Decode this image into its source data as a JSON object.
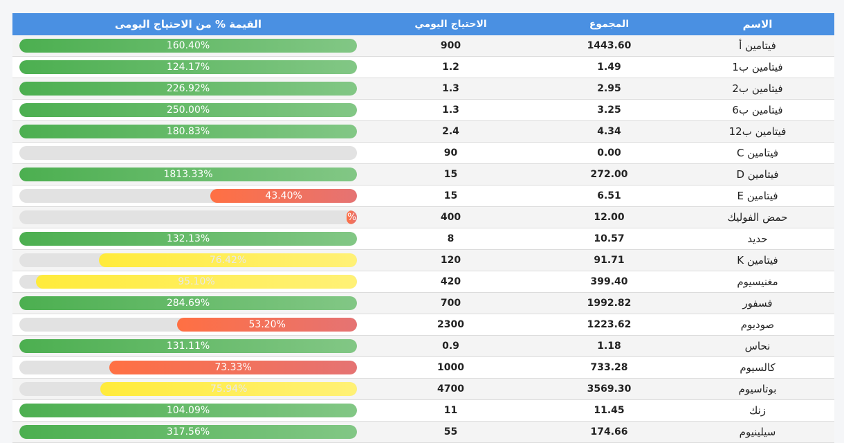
{
  "table": {
    "headers": {
      "name": "الاسم",
      "total": "المجموع",
      "daily": "الاحتياج اليومي",
      "percent": "القيمة % من الاحتياج اليومى"
    },
    "rows": [
      {
        "name": "فيتامين أ",
        "total": "1443.60",
        "daily": "900",
        "percent_label": "160.40%",
        "percent": 160.4,
        "color": "green"
      },
      {
        "name": "فيتامين ب1",
        "total": "1.49",
        "daily": "1.2",
        "percent_label": "124.17%",
        "percent": 124.17,
        "color": "green"
      },
      {
        "name": "فيتامين ب2",
        "total": "2.95",
        "daily": "1.3",
        "percent_label": "226.92%",
        "percent": 226.92,
        "color": "green"
      },
      {
        "name": "فيتامين ب6",
        "total": "3.25",
        "daily": "1.3",
        "percent_label": "250.00%",
        "percent": 250.0,
        "color": "green"
      },
      {
        "name": "فيتامين ب12",
        "total": "4.34",
        "daily": "2.4",
        "percent_label": "180.83%",
        "percent": 180.83,
        "color": "green"
      },
      {
        "name": "فيتامين C",
        "total": "0.00",
        "daily": "90",
        "percent_label": "",
        "percent": 0,
        "color": "red"
      },
      {
        "name": "فيتامين D",
        "total": "272.00",
        "daily": "15",
        "percent_label": "1813.33%",
        "percent": 1813.33,
        "color": "green"
      },
      {
        "name": "فيتامين E",
        "total": "6.51",
        "daily": "15",
        "percent_label": "43.40%",
        "percent": 43.4,
        "color": "red"
      },
      {
        "name": "حمض الفوليك",
        "total": "12.00",
        "daily": "400",
        "percent_label": "%",
        "percent": 3.0,
        "color": "red"
      },
      {
        "name": "حديد",
        "total": "10.57",
        "daily": "8",
        "percent_label": "132.13%",
        "percent": 132.13,
        "color": "green"
      },
      {
        "name": "فيتامين K",
        "total": "91.71",
        "daily": "120",
        "percent_label": "76.42%",
        "percent": 76.42,
        "color": "yellow"
      },
      {
        "name": "مغنيسيوم",
        "total": "399.40",
        "daily": "420",
        "percent_label": "95.10%",
        "percent": 95.1,
        "color": "yellow"
      },
      {
        "name": "فسفور",
        "total": "1992.82",
        "daily": "700",
        "percent_label": "284.69%",
        "percent": 284.69,
        "color": "green"
      },
      {
        "name": "صوديوم",
        "total": "1223.62",
        "daily": "2300",
        "percent_label": "53.20%",
        "percent": 53.2,
        "color": "red"
      },
      {
        "name": "نحاس",
        "total": "1.18",
        "daily": "0.9",
        "percent_label": "131.11%",
        "percent": 131.11,
        "color": "green"
      },
      {
        "name": "كالسيوم",
        "total": "733.28",
        "daily": "1000",
        "percent_label": "73.33%",
        "percent": 73.33,
        "color": "red"
      },
      {
        "name": "بوتاسيوم",
        "total": "3569.30",
        "daily": "4700",
        "percent_label": "75.94%",
        "percent": 75.94,
        "color": "yellow"
      },
      {
        "name": "زنك",
        "total": "11.45",
        "daily": "11",
        "percent_label": "104.09%",
        "percent": 104.09,
        "color": "green"
      },
      {
        "name": "سيلينيوم",
        "total": "174.66",
        "daily": "55",
        "percent_label": "317.56%",
        "percent": 317.56,
        "color": "green"
      }
    ]
  }
}
